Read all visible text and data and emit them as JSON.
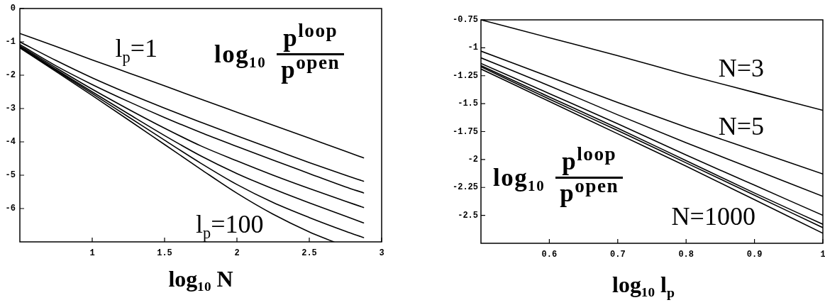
{
  "chart_data": [
    {
      "type": "line",
      "xlabel": "log₁₀ N",
      "ylabel": "log₁₀ p$^{loop}$ p$^{open}$",
      "xlim": [
        0.5,
        3
      ],
      "xticks": [
        1,
        1.5,
        2,
        2.5,
        3
      ],
      "ylim": [
        -7,
        0
      ],
      "yticks": [
        -6,
        -5,
        -4,
        -3,
        -2,
        -1,
        0
      ],
      "marker": "none",
      "line_style": "solid",
      "x": [
        0.5,
        0.75,
        1,
        1.25,
        1.5,
        1.75,
        2,
        2.25,
        2.5,
        2.75,
        2.875
      ],
      "series": [
        {
          "name": "l$_{p}$=1",
          "color": "#000000",
          "values": [
            -0.75,
            -1.14,
            -1.54,
            -1.93,
            -2.32,
            -2.72,
            -3.11,
            -3.5,
            -3.89,
            -4.28,
            -4.48
          ]
        },
        {
          "color": "#000000",
          "values": [
            -1.0,
            -1.56,
            -2.08,
            -2.55,
            -2.99,
            -3.41,
            -3.82,
            -4.22,
            -4.62,
            -5.0,
            -5.18
          ]
        },
        {
          "color": "#000000",
          "values": [
            -1.08,
            -1.72,
            -2.28,
            -2.79,
            -3.27,
            -3.72,
            -4.14,
            -4.55,
            -4.95,
            -5.35,
            -5.53
          ]
        },
        {
          "color": "#000000",
          "values": [
            -1.12,
            -1.78,
            -2.42,
            -3.02,
            -3.59,
            -4.12,
            -4.57,
            -5.0,
            -5.4,
            -5.78,
            -5.97
          ]
        },
        {
          "color": "#000000",
          "values": [
            -1.15,
            -1.83,
            -2.5,
            -3.16,
            -3.81,
            -4.42,
            -4.95,
            -5.41,
            -5.83,
            -6.23,
            -6.43
          ]
        },
        {
          "color": "#000000",
          "values": [
            -1.17,
            -1.86,
            -2.55,
            -3.25,
            -3.95,
            -4.64,
            -5.28,
            -5.82,
            -6.27,
            -6.68,
            -6.87
          ]
        },
        {
          "name": "l$_{p}$=100",
          "color": "#000000",
          "x": [
            0.5,
            0.75,
            1,
            1.25,
            1.5,
            1.75,
            2,
            2.25,
            2.5,
            2.67
          ],
          "values": [
            -1.18,
            -1.89,
            -2.61,
            -3.34,
            -4.08,
            -4.82,
            -5.54,
            -6.17,
            -6.7,
            -7.0
          ]
        }
      ]
    },
    {
      "type": "line",
      "xlabel": "log₁₀ l$_{p}$",
      "ylabel": "log₁₀ p$^{loop}$ p$^{open}$",
      "xlim": [
        0.5,
        1
      ],
      "xticks": [
        0.6,
        0.7,
        0.8,
        0.9,
        1
      ],
      "ylim": [
        -2.75,
        -0.75
      ],
      "yticks": [
        -2.5,
        -2.25,
        -2,
        -1.75,
        -1.5,
        -1.25,
        -1,
        -0.75
      ],
      "marker": "none",
      "line_style": "solid",
      "x": [
        0.5,
        0.6,
        0.7,
        0.8,
        0.9,
        1
      ],
      "series": [
        {
          "name": "N=3",
          "color": "#000000",
          "values": [
            -0.75,
            -0.91,
            -1.07,
            -1.24,
            -1.4,
            -1.56
          ]
        },
        {
          "name": "N=5",
          "color": "#000000",
          "values": [
            -1.03,
            -1.26,
            -1.49,
            -1.71,
            -1.92,
            -2.13
          ]
        },
        {
          "color": "#000000",
          "values": [
            -1.09,
            -1.34,
            -1.6,
            -1.85,
            -2.09,
            -2.33
          ]
        },
        {
          "color": "#000000",
          "values": [
            -1.14,
            -1.41,
            -1.68,
            -1.96,
            -2.23,
            -2.5
          ]
        },
        {
          "color": "#000000",
          "values": [
            -1.16,
            -1.44,
            -1.72,
            -2.01,
            -2.3,
            -2.58
          ]
        },
        {
          "color": "#000000",
          "values": [
            -1.17,
            -1.46,
            -1.74,
            -2.03,
            -2.32,
            -2.61
          ]
        },
        {
          "name": "N=1000",
          "color": "#000000",
          "values": [
            -1.19,
            -1.48,
            -1.77,
            -2.06,
            -2.36,
            -2.66
          ]
        }
      ]
    }
  ]
}
